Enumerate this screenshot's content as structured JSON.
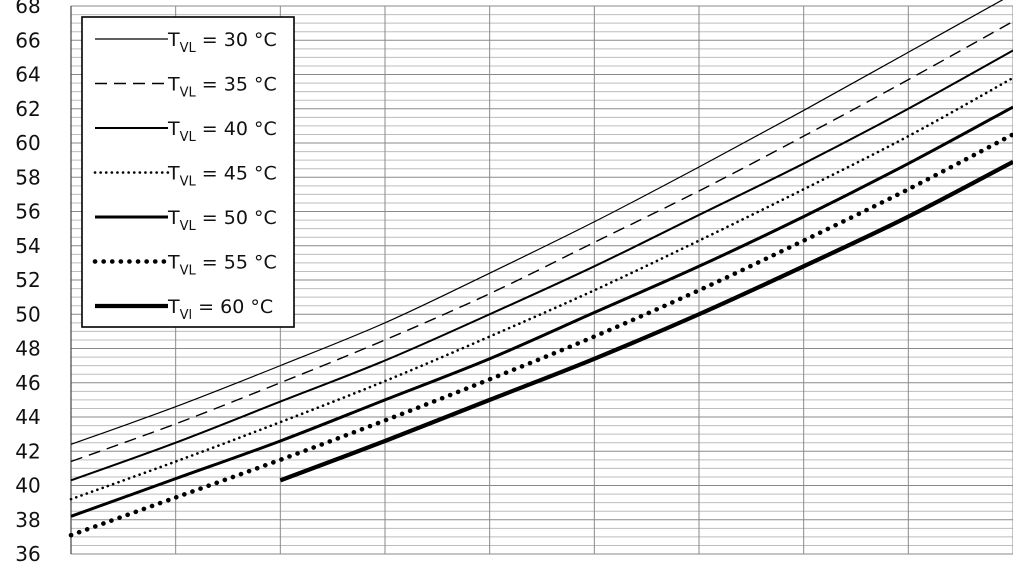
{
  "chart_data": {
    "type": "line",
    "title": "",
    "xlabel": "",
    "ylabel": "",
    "ylim": [
      36,
      68
    ],
    "yticks": [
      36,
      38,
      40,
      42,
      44,
      46,
      48,
      50,
      52,
      54,
      56,
      58,
      60,
      62,
      64,
      66,
      68
    ],
    "xlim": [
      0,
      9
    ],
    "grid": true,
    "legend_position": "top-left",
    "series": [
      {
        "name_main": "T",
        "name_sub": "VL",
        "name_rest": " = 30 °C",
        "style": "thin",
        "x": [
          0,
          1,
          2,
          3,
          4,
          5,
          6,
          7,
          8,
          9
        ],
        "y": [
          42.4,
          44.6,
          47.0,
          49.5,
          52.4,
          55.4,
          58.6,
          61.9,
          65.3,
          68.7
        ]
      },
      {
        "name_main": "T",
        "name_sub": "VL",
        "name_rest": " = 35 °C",
        "style": "dashed",
        "x": [
          0,
          1,
          2,
          3,
          4,
          5,
          6,
          7,
          8,
          9
        ],
        "y": [
          41.4,
          43.6,
          46.0,
          48.5,
          51.2,
          54.2,
          57.2,
          60.4,
          63.7,
          67.1
        ]
      },
      {
        "name_main": "T",
        "name_sub": "VL",
        "name_rest": " = 40 °C",
        "style": "solid",
        "x": [
          0,
          1,
          2,
          3,
          4,
          5,
          6,
          7,
          8,
          9
        ],
        "y": [
          40.3,
          42.5,
          44.9,
          47.3,
          50.0,
          52.8,
          55.8,
          58.8,
          62.0,
          65.4
        ]
      },
      {
        "name_main": "T",
        "name_sub": "VL",
        "name_rest": " = 45 °C",
        "style": "dotted",
        "x": [
          0,
          1,
          2,
          3,
          4,
          5,
          6,
          7,
          8,
          9
        ],
        "y": [
          39.2,
          41.4,
          43.7,
          46.1,
          48.7,
          51.4,
          54.3,
          57.3,
          60.4,
          63.8
        ]
      },
      {
        "name_main": "T",
        "name_sub": "VL",
        "name_rest": " = 50 °C",
        "style": "thick",
        "x": [
          0,
          1,
          2,
          3,
          4,
          5,
          6,
          7,
          8,
          9
        ],
        "y": [
          38.2,
          40.4,
          42.6,
          45.0,
          47.4,
          50.1,
          52.8,
          55.7,
          58.8,
          62.1
        ]
      },
      {
        "name_main": "T",
        "name_sub": "VL",
        "name_rest": " = 55 °C",
        "style": "thick-dotted",
        "x": [
          0,
          1,
          2,
          3,
          4,
          5,
          6,
          7,
          8,
          9
        ],
        "y": [
          37.1,
          39.3,
          41.5,
          43.8,
          46.2,
          48.7,
          51.4,
          54.3,
          57.3,
          60.5
        ]
      },
      {
        "name_main": "T",
        "name_sub": "Vl",
        "name_rest": " = 60 °C",
        "style": "extra-thick",
        "x": [
          2,
          3,
          4,
          5,
          6,
          7,
          8,
          9
        ],
        "y": [
          40.3,
          42.6,
          45.0,
          47.4,
          50.0,
          52.8,
          55.7,
          58.9
        ]
      }
    ]
  }
}
